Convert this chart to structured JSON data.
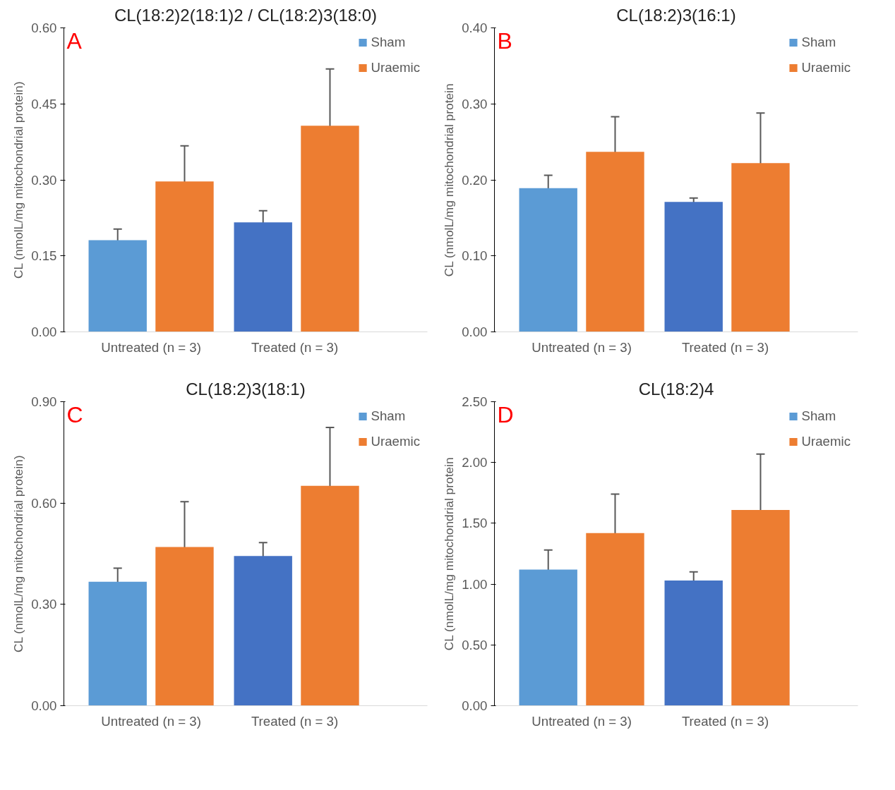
{
  "chart_data": [
    {
      "type": "bar",
      "title": "CL(18:2)2(18:1)2 / CL(18:2)3(18:0)",
      "annotations": [
        "A"
      ],
      "ylabel": "CL (nmolL/mg mitochondrial protein)",
      "categories": [
        "Untreated (n = 3)",
        "Treated  (n = 3)"
      ],
      "ylim": [
        0,
        0.6
      ],
      "yticks": [
        {
          "value": 0,
          "label": "0.00"
        },
        {
          "value": 0.15,
          "label": "0.15"
        },
        {
          "value": 0.3,
          "label": "0.30"
        },
        {
          "value": 0.45,
          "label": "0.45"
        },
        {
          "value": 0.6,
          "label": "0.60"
        }
      ],
      "legend": "top right",
      "grid": false,
      "series": [
        {
          "name": "Sham",
          "colors": [
            "#5b9bd5",
            "#4472c4"
          ],
          "values": [
            0.181,
            0.216
          ],
          "errors": [
            0.022,
            0.023
          ]
        },
        {
          "name": "Uraemic",
          "colors": [
            "#ed7d31",
            "#ed7d31"
          ],
          "values": [
            0.297,
            0.407
          ],
          "errors": [
            0.07,
            0.112
          ]
        }
      ]
    },
    {
      "type": "bar",
      "title": "CL(18:2)3(16:1)",
      "annotations": [
        "B"
      ],
      "ylabel": "CL (nmolL/mg mitochondrial protein",
      "categories": [
        "Untreated (n = 3)",
        "Treated  (n = 3)"
      ],
      "ylim": [
        0,
        0.4
      ],
      "yticks": [
        {
          "value": 0,
          "label": "0.00"
        },
        {
          "value": 0.1,
          "label": "0.10"
        },
        {
          "value": 0.2,
          "label": "0.20"
        },
        {
          "value": 0.3,
          "label": "0.30"
        },
        {
          "value": 0.4,
          "label": "0.40"
        }
      ],
      "legend": "top right",
      "grid": false,
      "series": [
        {
          "name": "Sham",
          "colors": [
            "#5b9bd5",
            "#4472c4"
          ],
          "values": [
            0.189,
            0.171
          ],
          "errors": [
            0.017,
            0.005
          ]
        },
        {
          "name": "Uraemic",
          "colors": [
            "#ed7d31",
            "#ed7d31"
          ],
          "values": [
            0.237,
            0.222
          ],
          "errors": [
            0.046,
            0.066
          ]
        }
      ]
    },
    {
      "type": "bar",
      "title": "CL(18:2)3(18:1)",
      "annotations": [
        "C"
      ],
      "ylabel": "CL (nmolL/mg mitochondrial protein)",
      "categories": [
        "Untreated (n = 3)",
        "Treated  (n = 3)"
      ],
      "ylim": [
        0,
        0.9
      ],
      "yticks": [
        {
          "value": 0,
          "label": "0.00"
        },
        {
          "value": 0.3,
          "label": "0.30"
        },
        {
          "value": 0.6,
          "label": "0.60"
        },
        {
          "value": 0.9,
          "label": "0.90"
        }
      ],
      "legend": "top right",
      "grid": false,
      "series": [
        {
          "name": "Sham",
          "colors": [
            "#5b9bd5",
            "#4472c4"
          ],
          "values": [
            0.367,
            0.443
          ],
          "errors": [
            0.04,
            0.04
          ]
        },
        {
          "name": "Uraemic",
          "colors": [
            "#ed7d31",
            "#ed7d31"
          ],
          "values": [
            0.47,
            0.651
          ],
          "errors": [
            0.134,
            0.173
          ]
        }
      ]
    },
    {
      "type": "bar",
      "title": "CL(18:2)4",
      "annotations": [
        "D"
      ],
      "ylabel": "CL (nmolL/mg mitochondrial protein",
      "categories": [
        "Untreated (n = 3)",
        "Treated  (n = 3)"
      ],
      "ylim": [
        0,
        2.5
      ],
      "yticks": [
        {
          "value": 0,
          "label": "0.00"
        },
        {
          "value": 0.5,
          "label": "0.50"
        },
        {
          "value": 1.0,
          "label": "1.00"
        },
        {
          "value": 1.5,
          "label": "1.50"
        },
        {
          "value": 2.0,
          "label": "2.00"
        },
        {
          "value": 2.5,
          "label": "2.50"
        }
      ],
      "legend": "top right",
      "grid": false,
      "series": [
        {
          "name": "Sham",
          "colors": [
            "#5b9bd5",
            "#4472c4"
          ],
          "values": [
            1.12,
            1.03
          ],
          "errors": [
            0.16,
            0.07
          ]
        },
        {
          "name": "Uraemic",
          "colors": [
            "#ed7d31",
            "#ed7d31"
          ],
          "values": [
            1.42,
            1.61
          ],
          "errors": [
            0.32,
            0.46
          ]
        }
      ]
    }
  ]
}
